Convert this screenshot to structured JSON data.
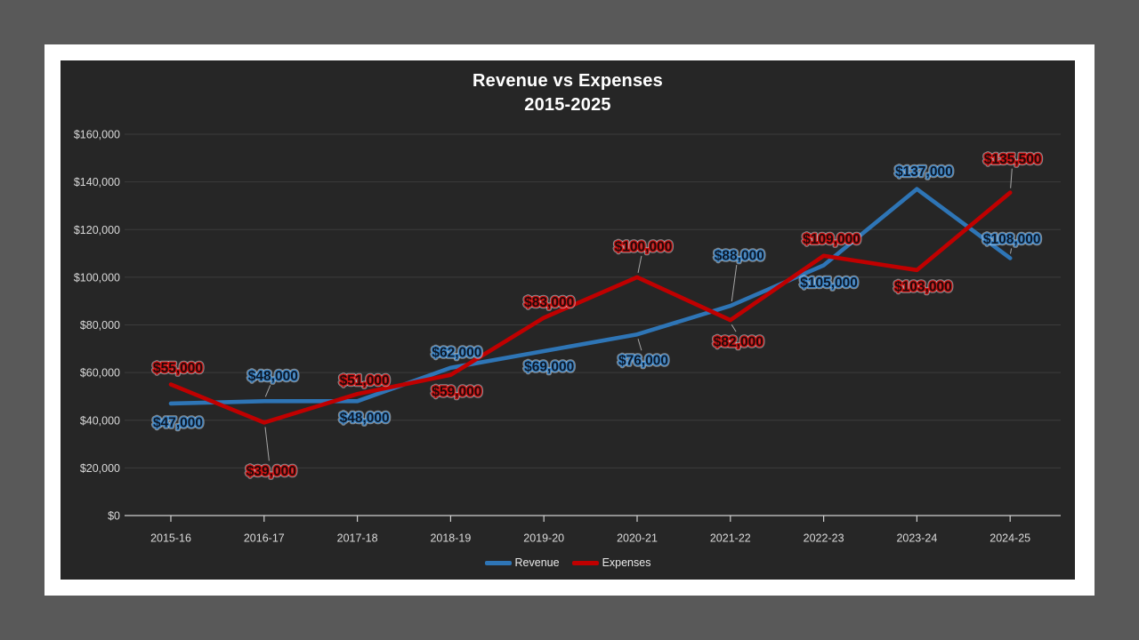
{
  "slide": {
    "title_line1": "Revenue vs Expenses",
    "title_line2": "2015-2025"
  },
  "chart_data": {
    "type": "line",
    "title": "Revenue vs Expenses 2015-2025",
    "categories": [
      "2015-16",
      "2016-17",
      "2017-18",
      "2018-19",
      "2019-20",
      "2020-21",
      "2021-22",
      "2022-23",
      "2023-24",
      "2024-25"
    ],
    "series": [
      {
        "name": "Revenue",
        "color": "#2E75B6",
        "label_stroke": "#3D87C9",
        "label_fill": "#0d1726",
        "values": [
          47000,
          48000,
          48000,
          62000,
          69000,
          76000,
          88000,
          105000,
          137000,
          108000
        ],
        "labels": [
          "$47,000",
          "$48,000",
          "$48,000",
          "$62,000",
          "$69,000",
          "$76,000",
          "$88,000",
          "$105,000",
          "$137,000",
          "$108,000"
        ],
        "label_offsets": [
          [
            8,
            21
          ],
          [
            10,
            -29
          ],
          [
            8,
            18
          ],
          [
            7,
            -18
          ],
          [
            6,
            17
          ],
          [
            7,
            29
          ],
          [
            10,
            -57
          ],
          [
            6,
            19
          ],
          [
            8,
            -20
          ],
          [
            2,
            -22
          ]
        ],
        "label_leaders": [
          false,
          true,
          false,
          false,
          false,
          true,
          true,
          false,
          false,
          true
        ]
      },
      {
        "name": "Expenses",
        "color": "#C00000",
        "label_stroke": "#CE1212",
        "label_fill": "#1c0b0b",
        "values": [
          55000,
          39000,
          51000,
          59000,
          83000,
          100000,
          82000,
          109000,
          103000,
          135500
        ],
        "labels": [
          "$55,000",
          "$39,000",
          "$51,000",
          "$59,000",
          "$83,000",
          "$100,000",
          "$82,000",
          "$109,000",
          "$103,000",
          "$135,500"
        ],
        "label_offsets": [
          [
            8,
            -19
          ],
          [
            8,
            54
          ],
          [
            8,
            -16
          ],
          [
            7,
            18
          ],
          [
            6,
            -18
          ],
          [
            7,
            -35
          ],
          [
            9,
            24
          ],
          [
            9,
            -19
          ],
          [
            7,
            18
          ],
          [
            3,
            -38
          ]
        ],
        "label_leaders": [
          false,
          true,
          false,
          false,
          false,
          true,
          true,
          false,
          false,
          true
        ]
      }
    ],
    "y_axis": {
      "min": 0,
      "max": 160000,
      "step": 20000,
      "tick_labels": [
        "$0",
        "$20,000",
        "$40,000",
        "$60,000",
        "$80,000",
        "$100,000",
        "$120,000",
        "$140,000",
        "$160,000"
      ]
    },
    "legend": {
      "position": "bottom",
      "entries": [
        "Revenue",
        "Expenses"
      ]
    },
    "grid": true
  },
  "colors": {
    "canvas_bg": "#595959",
    "slide_bg": "#ffffff",
    "chart_bg": "#262626",
    "gridline": "#3c3c3c",
    "axis_line": "#cfcfcf",
    "axis_text": "#d9d9d9",
    "title_text": "#ffffff",
    "leader_line": "#a6a6a6",
    "label_halo": "#e8eef4"
  }
}
